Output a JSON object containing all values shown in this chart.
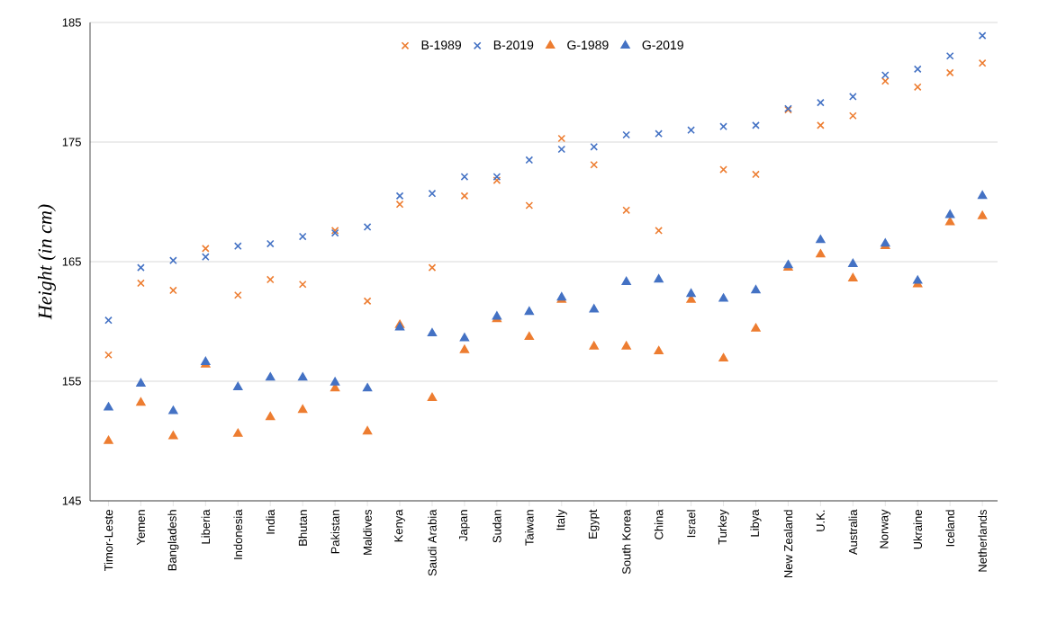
{
  "chart_data": {
    "type": "scatter",
    "ylabel": "Height (in cm)",
    "categories": [
      "Timor-Leste",
      "Yemen",
      "Bangladesh",
      "Liberia",
      "Indonesia",
      "India",
      "Bhutan",
      "Pakistan",
      "Maldives",
      "Kenya",
      "Saudi Arabia",
      "Japan",
      "Sudan",
      "Taiwan",
      "Italy",
      "Egypt",
      "South Korea",
      "China",
      "Israel",
      "Turkey",
      "Libya",
      "New Zealand",
      "U.K.",
      "Australia",
      "Norway",
      "Ukraine",
      "Iceland",
      "Netherlands"
    ],
    "series": [
      {
        "name": "B-1989",
        "color": "#ed7d31",
        "marker": "cross",
        "values": [
          157.2,
          163.2,
          162.6,
          166.1,
          162.2,
          163.5,
          163.1,
          167.6,
          161.7,
          169.8,
          164.5,
          170.5,
          171.8,
          169.7,
          175.3,
          173.1,
          169.3,
          167.6,
          null,
          172.7,
          172.3,
          177.7,
          176.4,
          177.2,
          180.1,
          179.6,
          180.8,
          181.6
        ]
      },
      {
        "name": "B-2019",
        "color": "#4472c4",
        "marker": "cross",
        "values": [
          160.1,
          164.5,
          165.1,
          165.4,
          166.3,
          166.5,
          167.1,
          167.4,
          167.9,
          170.5,
          170.7,
          172.1,
          172.1,
          173.5,
          174.4,
          174.6,
          175.6,
          175.7,
          176.0,
          176.3,
          176.4,
          177.8,
          178.3,
          178.8,
          180.6,
          181.1,
          182.2,
          183.9
        ]
      },
      {
        "name": "G-1989",
        "color": "#ed7d31",
        "marker": "triangle",
        "values": [
          150.0,
          153.2,
          150.4,
          156.4,
          150.6,
          152.0,
          152.6,
          154.4,
          150.8,
          159.7,
          153.6,
          157.6,
          160.2,
          158.7,
          161.8,
          157.9,
          157.9,
          157.5,
          161.8,
          156.9,
          159.4,
          164.5,
          165.6,
          163.6,
          166.3,
          163.1,
          168.3,
          168.8
        ]
      },
      {
        "name": "G-2019",
        "color": "#4472c4",
        "marker": "triangle",
        "values": [
          152.8,
          154.8,
          152.5,
          156.6,
          154.5,
          155.3,
          155.3,
          154.9,
          154.4,
          159.5,
          159.0,
          158.6,
          160.4,
          160.8,
          162.0,
          161.0,
          163.3,
          163.5,
          162.3,
          161.9,
          162.6,
          164.7,
          166.8,
          164.8,
          166.5,
          163.4,
          168.9,
          170.5
        ]
      }
    ],
    "ylim": [
      145,
      185
    ],
    "yticks": [
      145,
      155,
      165,
      175,
      185
    ],
    "grid": "y",
    "legend": "top"
  }
}
